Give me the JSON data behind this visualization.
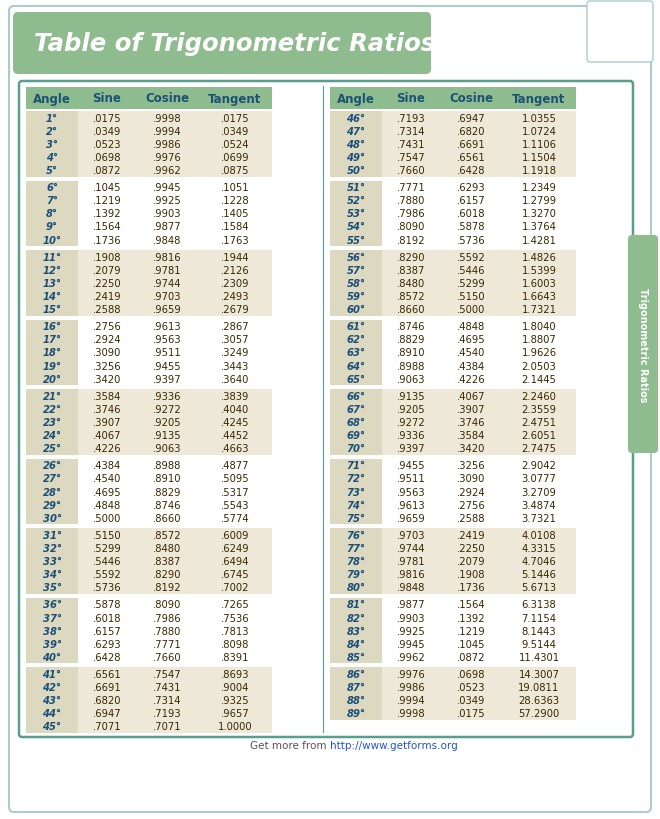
{
  "title": "Table of Trigonometric Ratios",
  "title_bg": "#8fbc8f",
  "title_color": "white",
  "header_bg": "#8fbc8f",
  "header_color": "#1a5276",
  "row_bg_odd": "#ede8d8",
  "row_bg_even": "#ffffff",
  "angle_col_bg": "#ddd8c0",
  "data_color": "#3a2800",
  "angle_color": "#1a4f7a",
  "border_color": "#5a9e8e",
  "sidebar_text": "Trigonometric Ratios",
  "sidebar_bg": "#8fbc8f",
  "sidebar_color": "white",
  "footer_plain": "Get more from ",
  "footer_url": "http://www.getforms.org",
  "bg_color": "#ffffff",
  "left_table": [
    [
      "1",
      ".0175",
      ".9998",
      ".0175"
    ],
    [
      "2",
      ".0349",
      ".9994",
      ".0349"
    ],
    [
      "3",
      ".0523",
      ".9986",
      ".0524"
    ],
    [
      "4",
      ".0698",
      ".9976",
      ".0699"
    ],
    [
      "5",
      ".0872",
      ".9962",
      ".0875"
    ],
    [
      "6",
      ".1045",
      ".9945",
      ".1051"
    ],
    [
      "7",
      ".1219",
      ".9925",
      ".1228"
    ],
    [
      "8",
      ".1392",
      ".9903",
      ".1405"
    ],
    [
      "9",
      ".1564",
      ".9877",
      ".1584"
    ],
    [
      "10",
      ".1736",
      ".9848",
      ".1763"
    ],
    [
      "11",
      ".1908",
      ".9816",
      ".1944"
    ],
    [
      "12",
      ".2079",
      ".9781",
      ".2126"
    ],
    [
      "13",
      ".2250",
      ".9744",
      ".2309"
    ],
    [
      "14",
      ".2419",
      ".9703",
      ".2493"
    ],
    [
      "15",
      ".2588",
      ".9659",
      ".2679"
    ],
    [
      "16",
      ".2756",
      ".9613",
      ".2867"
    ],
    [
      "17",
      ".2924",
      ".9563",
      ".3057"
    ],
    [
      "18",
      ".3090",
      ".9511",
      ".3249"
    ],
    [
      "19",
      ".3256",
      ".9455",
      ".3443"
    ],
    [
      "20",
      ".3420",
      ".9397",
      ".3640"
    ],
    [
      "21",
      ".3584",
      ".9336",
      ".3839"
    ],
    [
      "22",
      ".3746",
      ".9272",
      ".4040"
    ],
    [
      "23",
      ".3907",
      ".9205",
      ".4245"
    ],
    [
      "24",
      ".4067",
      ".9135",
      ".4452"
    ],
    [
      "25",
      ".4226",
      ".9063",
      ".4663"
    ],
    [
      "26",
      ".4384",
      ".8988",
      ".4877"
    ],
    [
      "27",
      ".4540",
      ".8910",
      ".5095"
    ],
    [
      "28",
      ".4695",
      ".8829",
      ".5317"
    ],
    [
      "29",
      ".4848",
      ".8746",
      ".5543"
    ],
    [
      "30",
      ".5000",
      ".8660",
      ".5774"
    ],
    [
      "31",
      ".5150",
      ".8572",
      ".6009"
    ],
    [
      "32",
      ".5299",
      ".8480",
      ".6249"
    ],
    [
      "33",
      ".5446",
      ".8387",
      ".6494"
    ],
    [
      "34",
      ".5592",
      ".8290",
      ".6745"
    ],
    [
      "35",
      ".5736",
      ".8192",
      ".7002"
    ],
    [
      "36",
      ".5878",
      ".8090",
      ".7265"
    ],
    [
      "37",
      ".6018",
      ".7986",
      ".7536"
    ],
    [
      "38",
      ".6157",
      ".7880",
      ".7813"
    ],
    [
      "39",
      ".6293",
      ".7771",
      ".8098"
    ],
    [
      "40",
      ".6428",
      ".7660",
      ".8391"
    ],
    [
      "41",
      ".6561",
      ".7547",
      ".8693"
    ],
    [
      "42",
      ".6691",
      ".7431",
      ".9004"
    ],
    [
      "43",
      ".6820",
      ".7314",
      ".9325"
    ],
    [
      "44",
      ".6947",
      ".7193",
      ".9657"
    ],
    [
      "45",
      ".7071",
      ".7071",
      "1.0000"
    ]
  ],
  "right_table": [
    [
      "46",
      ".7193",
      ".6947",
      "1.0355"
    ],
    [
      "47",
      ".7314",
      ".6820",
      "1.0724"
    ],
    [
      "48",
      ".7431",
      ".6691",
      "1.1106"
    ],
    [
      "49",
      ".7547",
      ".6561",
      "1.1504"
    ],
    [
      "50",
      ".7660",
      ".6428",
      "1.1918"
    ],
    [
      "51",
      ".7771",
      ".6293",
      "1.2349"
    ],
    [
      "52",
      ".7880",
      ".6157",
      "1.2799"
    ],
    [
      "53",
      ".7986",
      ".6018",
      "1.3270"
    ],
    [
      "54",
      ".8090",
      ".5878",
      "1.3764"
    ],
    [
      "55",
      ".8192",
      ".5736",
      "1.4281"
    ],
    [
      "56",
      ".8290",
      ".5592",
      "1.4826"
    ],
    [
      "57",
      ".8387",
      ".5446",
      "1.5399"
    ],
    [
      "58",
      ".8480",
      ".5299",
      "1.6003"
    ],
    [
      "59",
      ".8572",
      ".5150",
      "1.6643"
    ],
    [
      "60",
      ".8660",
      ".5000",
      "1.7321"
    ],
    [
      "61",
      ".8746",
      ".4848",
      "1.8040"
    ],
    [
      "62",
      ".8829",
      ".4695",
      "1.8807"
    ],
    [
      "63",
      ".8910",
      ".4540",
      "1.9626"
    ],
    [
      "64",
      ".8988",
      ".4384",
      "2.0503"
    ],
    [
      "65",
      ".9063",
      ".4226",
      "2.1445"
    ],
    [
      "66",
      ".9135",
      ".4067",
      "2.2460"
    ],
    [
      "67",
      ".9205",
      ".3907",
      "2.3559"
    ],
    [
      "68",
      ".9272",
      ".3746",
      "2.4751"
    ],
    [
      "69",
      ".9336",
      ".3584",
      "2.6051"
    ],
    [
      "70",
      ".9397",
      ".3420",
      "2.7475"
    ],
    [
      "71",
      ".9455",
      ".3256",
      "2.9042"
    ],
    [
      "72",
      ".9511",
      ".3090",
      "3.0777"
    ],
    [
      "73",
      ".9563",
      ".2924",
      "3.2709"
    ],
    [
      "74",
      ".9613",
      ".2756",
      "3.4874"
    ],
    [
      "75",
      ".9659",
      ".2588",
      "3.7321"
    ],
    [
      "76",
      ".9703",
      ".2419",
      "4.0108"
    ],
    [
      "77",
      ".9744",
      ".2250",
      "4.3315"
    ],
    [
      "78",
      ".9781",
      ".2079",
      "4.7046"
    ],
    [
      "79",
      ".9816",
      ".1908",
      "5.1446"
    ],
    [
      "80",
      ".9848",
      ".1736",
      "5.6713"
    ],
    [
      "81",
      ".9877",
      ".1564",
      "6.3138"
    ],
    [
      "82",
      ".9903",
      ".1392",
      "7.1154"
    ],
    [
      "83",
      ".9925",
      ".1219",
      "8.1443"
    ],
    [
      "84",
      ".9945",
      ".1045",
      "9.5144"
    ],
    [
      "85",
      ".9962",
      ".0872",
      "11.4301"
    ],
    [
      "86",
      ".9976",
      ".0698",
      "14.3007"
    ],
    [
      "87",
      ".9986",
      ".0523",
      "19.0811"
    ],
    [
      "88",
      ".9994",
      ".0349",
      "28.6363"
    ],
    [
      "89",
      ".9998",
      ".0175",
      "57.2900"
    ]
  ]
}
